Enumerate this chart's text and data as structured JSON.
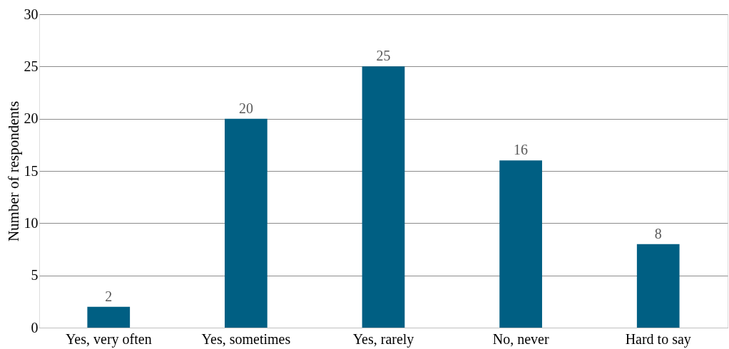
{
  "chart_data": {
    "type": "bar",
    "ylabel": "Number of respondents",
    "categories": [
      "Yes, very often",
      "Yes, sometimes",
      "Yes, rarely",
      "No, never",
      "Hard to say"
    ],
    "values": [
      2,
      20,
      25,
      16,
      8
    ],
    "color": "#005f83",
    "ylim": [
      0,
      30
    ],
    "yticks": [
      0,
      5,
      10,
      15,
      20,
      25,
      30
    ],
    "grid": "y",
    "data_labels": true
  }
}
